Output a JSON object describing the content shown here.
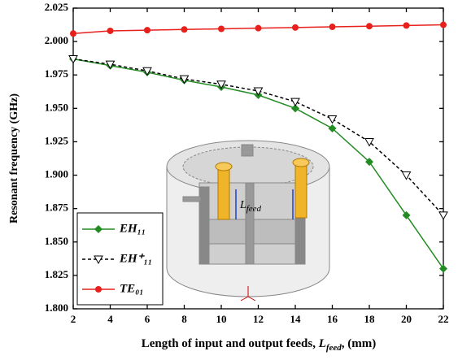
{
  "chart_data": {
    "type": "line",
    "x_label": [
      "Length of input and output feeds, ",
      "L",
      "feed",
      ", (mm)"
    ],
    "y_label": "Resonant frequency (GHz)",
    "x": [
      2,
      4,
      6,
      8,
      10,
      12,
      14,
      16,
      18,
      20,
      22
    ],
    "xlim": [
      2,
      22
    ],
    "xticks": [
      2,
      4,
      6,
      8,
      10,
      12,
      14,
      16,
      18,
      20,
      22
    ],
    "ylim": [
      1.8,
      2.025
    ],
    "yticks": [
      {
        "value": 1.8,
        "label": "1.800"
      },
      1.825,
      {
        "value": 1.85,
        "label": "1.850"
      },
      1.875,
      {
        "value": 1.9,
        "label": "1.900"
      },
      1.925,
      {
        "value": 1.95,
        "label": "1.950"
      },
      1.975,
      {
        "value": 2.0,
        "label": "2.000"
      },
      2.025
    ],
    "legend": "lower left",
    "series": [
      {
        "name": "EH₁₁",
        "color": "#228B22",
        "marker": "diamond",
        "dash": false,
        "values": [
          1.987,
          1.982,
          1.977,
          1.971,
          1.966,
          1.96,
          1.95,
          1.935,
          1.91,
          1.87,
          1.83
        ]
      },
      {
        "name": "EH⁺₁₁",
        "color": "#000000",
        "marker": "triangle-down",
        "dash": true,
        "values": [
          1.987,
          1.983,
          1.978,
          1.972,
          1.968,
          1.963,
          1.955,
          1.942,
          1.925,
          1.9,
          1.87
        ]
      },
      {
        "name": "TE₀₁",
        "color": "#e8201c",
        "marker": "circle",
        "dash": false,
        "values": [
          2.006,
          2.008,
          2.0085,
          2.009,
          2.0095,
          2.01,
          2.0105,
          2.011,
          2.0115,
          2.012,
          2.0125
        ]
      }
    ],
    "inset_label": [
      "L",
      "feed"
    ]
  }
}
